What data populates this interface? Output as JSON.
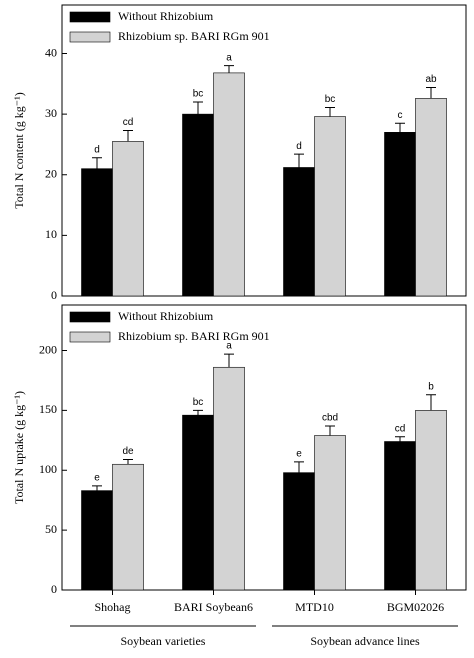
{
  "chart_data": [
    {
      "type": "bar",
      "y_label": "Total N content (g kg⁻¹)",
      "ylim": [
        0,
        48
      ],
      "yticks": [
        0,
        10,
        20,
        30,
        40
      ],
      "series": [
        {
          "name": "Without Rhizobium",
          "color": "#000000",
          "values": [
            21,
            30,
            21.2,
            27
          ],
          "errors": [
            1.8,
            2,
            2.2,
            1.5
          ],
          "letters": [
            "d",
            "bc",
            "d",
            "c"
          ]
        },
        {
          "name": "Rhizobium sp. BARI RGm 901",
          "color": "#d3d3d3",
          "values": [
            25.5,
            36.8,
            29.6,
            32.6
          ],
          "errors": [
            1.8,
            1.2,
            1.5,
            1.8
          ],
          "letters": [
            "cd",
            "a",
            "bc",
            "ab"
          ]
        }
      ]
    },
    {
      "type": "bar",
      "y_label": "Total N uptake (g kg⁻¹)",
      "ylim": [
        0,
        238
      ],
      "yticks": [
        0,
        50,
        100,
        150,
        200
      ],
      "categories": [
        "Shohag",
        "BARI Soybean6",
        "MTD10",
        "BGM02026"
      ],
      "group_labels": [
        "Soybean varieties",
        "Soybean advance lines"
      ],
      "series": [
        {
          "name": "Without Rhizobium",
          "color": "#000000",
          "values": [
            83,
            146,
            98,
            124
          ],
          "errors": [
            4,
            4,
            9,
            4
          ],
          "letters": [
            "e",
            "bc",
            "e",
            "cd"
          ]
        },
        {
          "name": "Rhizobium sp. BARI RGm 901",
          "color": "#d3d3d3",
          "values": [
            105,
            186,
            129,
            150
          ],
          "errors": [
            4,
            11,
            8,
            13
          ],
          "letters": [
            "de",
            "a",
            "cbd",
            "b"
          ]
        }
      ]
    }
  ]
}
